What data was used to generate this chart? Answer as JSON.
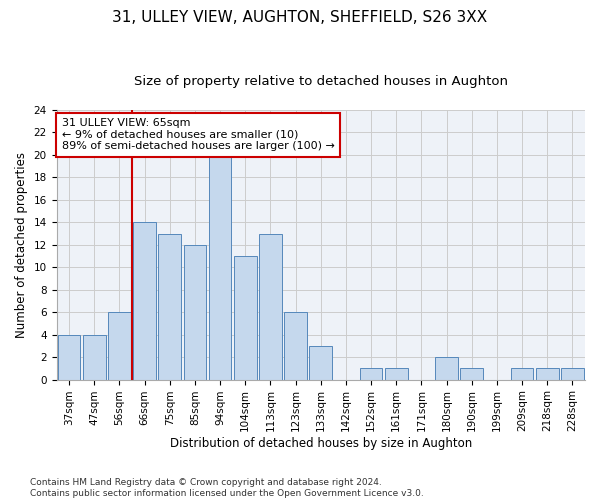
{
  "title_line1": "31, ULLEY VIEW, AUGHTON, SHEFFIELD, S26 3XX",
  "title_line2": "Size of property relative to detached houses in Aughton",
  "xlabel": "Distribution of detached houses by size in Aughton",
  "ylabel": "Number of detached properties",
  "categories": [
    "37sqm",
    "47sqm",
    "56sqm",
    "66sqm",
    "75sqm",
    "85sqm",
    "94sqm",
    "104sqm",
    "113sqm",
    "123sqm",
    "133sqm",
    "142sqm",
    "152sqm",
    "161sqm",
    "171sqm",
    "180sqm",
    "190sqm",
    "199sqm",
    "209sqm",
    "218sqm",
    "228sqm"
  ],
  "values": [
    4,
    4,
    6,
    14,
    13,
    12,
    20,
    11,
    13,
    6,
    3,
    0,
    1,
    1,
    0,
    2,
    1,
    0,
    1,
    1,
    1
  ],
  "bar_color": "#c5d8ed",
  "bar_edge_color": "#5588bb",
  "vline_color": "#cc0000",
  "annotation_text": "31 ULLEY VIEW: 65sqm\n← 9% of detached houses are smaller (10)\n89% of semi-detached houses are larger (100) →",
  "annotation_box_color": "white",
  "annotation_box_edge": "#cc0000",
  "ylim": [
    0,
    24
  ],
  "yticks": [
    0,
    2,
    4,
    6,
    8,
    10,
    12,
    14,
    16,
    18,
    20,
    22,
    24
  ],
  "grid_color": "#cccccc",
  "background_color": "white",
  "axes_bg_color": "#eef2f8",
  "footnote": "Contains HM Land Registry data © Crown copyright and database right 2024.\nContains public sector information licensed under the Open Government Licence v3.0.",
  "title_fontsize": 11,
  "subtitle_fontsize": 9.5,
  "xlabel_fontsize": 8.5,
  "ylabel_fontsize": 8.5,
  "tick_fontsize": 7.5,
  "annotation_fontsize": 8,
  "footnote_fontsize": 6.5
}
